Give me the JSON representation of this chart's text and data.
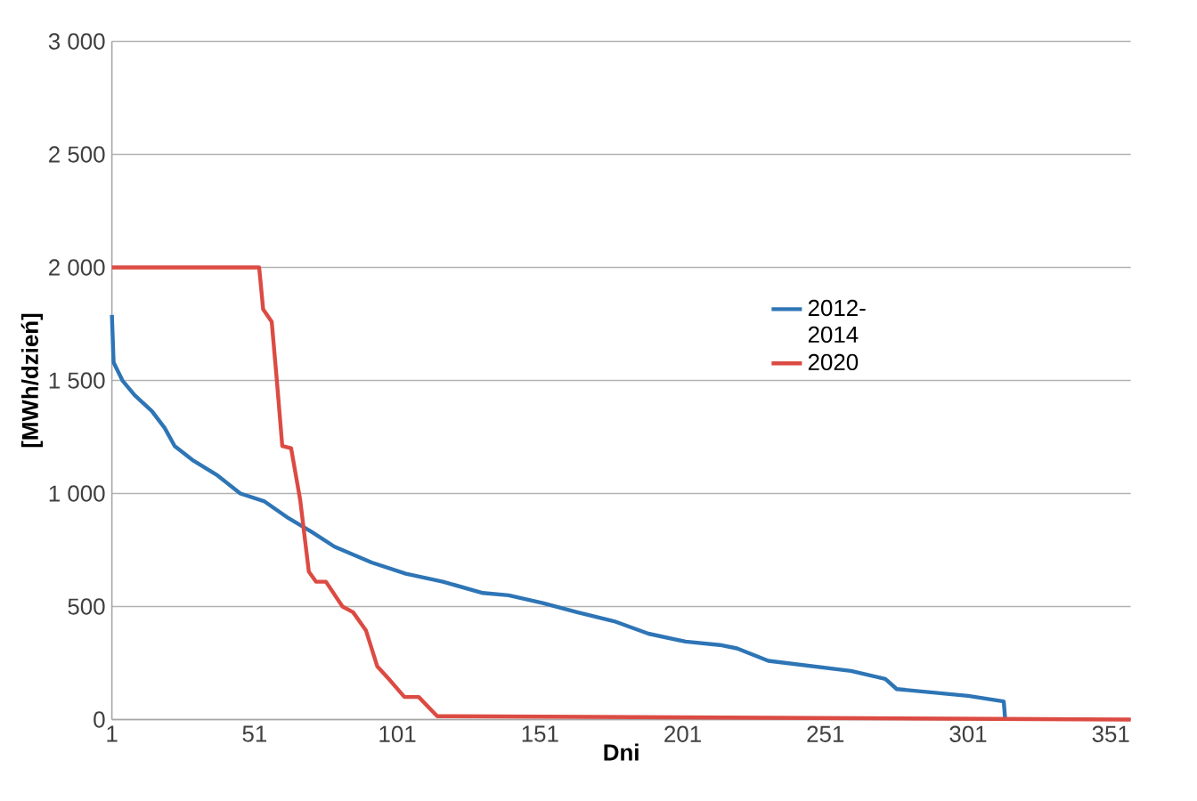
{
  "chart_data": {
    "type": "line",
    "xlabel": "Dni",
    "ylabel": "[MWh/dzień]",
    "xlim": [
      1,
      358
    ],
    "xticks": [
      1,
      51,
      101,
      151,
      201,
      251,
      301,
      351
    ],
    "ylim": [
      0,
      3000
    ],
    "yticks": [
      {
        "value": 0,
        "label": "0"
      },
      {
        "value": 500,
        "label": "500"
      },
      {
        "value": 1000,
        "label": "1 000"
      },
      {
        "value": 1500,
        "label": "1 500"
      },
      {
        "value": 2000,
        "label": "2 000"
      },
      {
        "value": 2500,
        "label": "2 500"
      },
      {
        "value": 3000,
        "label": "3 000"
      }
    ],
    "grid": "y",
    "legend": "right",
    "marker": "none",
    "line_style": "solid",
    "series": [
      {
        "name": "2012-2014",
        "color": "#2e75b6",
        "x": [
          1,
          1.6,
          4.7,
          9,
          15,
          19.5,
          23,
          29.6,
          38,
          46,
          54.5,
          63,
          71,
          79,
          92,
          104,
          117,
          131,
          140,
          152,
          164,
          177,
          189,
          202,
          214,
          220,
          231,
          260,
          272,
          276,
          301,
          313.5,
          314
        ],
        "values": [
          1790,
          1580,
          1500,
          1435,
          1365,
          1290,
          1210,
          1145,
          1080,
          1000,
          965,
          890,
          830,
          765,
          695,
          645,
          610,
          560,
          550,
          515,
          475,
          435,
          380,
          345,
          330,
          315,
          260,
          215,
          180,
          135,
          105,
          80,
          0
        ]
      },
      {
        "name": "2020",
        "color": "#dc4b43",
        "x": [
          1,
          52.6,
          54,
          57,
          58.8,
          60.7,
          63.8,
          67,
          70,
          72.5,
          76,
          81.8,
          85.5,
          90,
          94,
          98,
          103.5,
          108.5,
          115,
          358
        ],
        "values": [
          2000,
          2000,
          1815,
          1760,
          1500,
          1210,
          1200,
          970,
          655,
          610,
          610,
          500,
          475,
          395,
          235,
          180,
          100,
          100,
          15,
          0
        ]
      }
    ]
  }
}
